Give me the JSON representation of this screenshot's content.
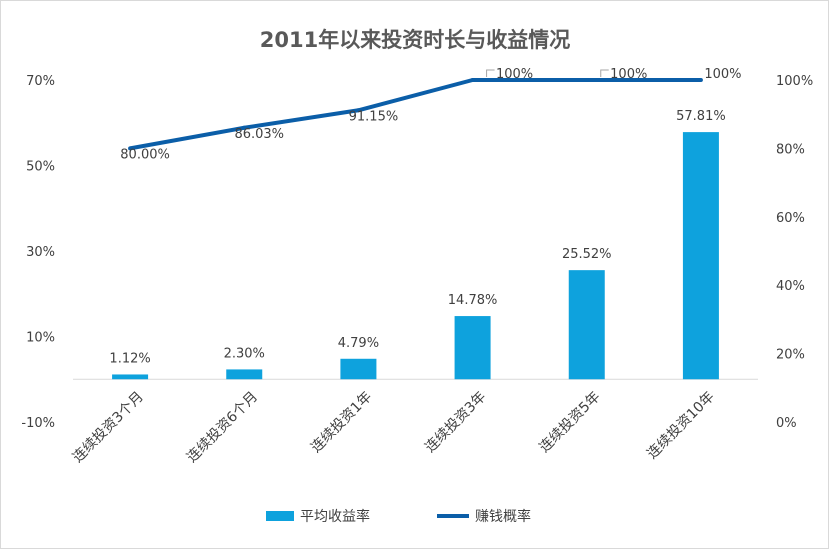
{
  "chart_data": {
    "type": "bar",
    "title": "2011年以来投资时长与收益情况",
    "categories": [
      "连续投资3个月",
      "连续投资6个月",
      "连续投资1年",
      "连续投资3年",
      "连续投资5年",
      "连续投资10年"
    ],
    "series": [
      {
        "name": "平均收益率",
        "type": "bar",
        "axis": "left",
        "color": "#0ea2dd",
        "values": [
          1.12,
          2.3,
          4.79,
          14.78,
          25.52,
          57.81
        ],
        "labels": [
          "1.12%",
          "2.30%",
          "4.79%",
          "14.78%",
          "25.52%",
          "57.81%"
        ]
      },
      {
        "name": "赚钱概率",
        "type": "line",
        "axis": "right",
        "color": "#0b5ea8",
        "values": [
          80.0,
          86.03,
          91.15,
          100,
          100,
          100
        ],
        "labels": [
          "80.00%",
          "86.03%",
          "91.15%",
          "100%",
          "100%",
          "100%"
        ]
      }
    ],
    "y_left": {
      "min": -10,
      "max": 70,
      "ticks": [
        "-10%",
        "10%",
        "30%",
        "50%",
        "70%"
      ],
      "tick_values": [
        -10,
        10,
        30,
        50,
        70
      ]
    },
    "y_right": {
      "min": 0,
      "max": 100,
      "ticks": [
        "0%",
        "20%",
        "40%",
        "60%",
        "80%",
        "100%"
      ],
      "tick_values": [
        0,
        20,
        40,
        60,
        80,
        100
      ]
    },
    "grid": false,
    "legend": "bottom"
  }
}
